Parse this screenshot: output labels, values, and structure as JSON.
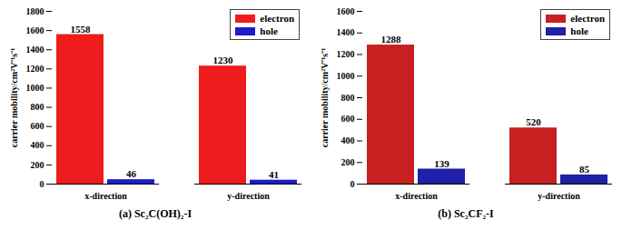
{
  "chart_data": [
    {
      "type": "bar",
      "title": "(a) Sc₂C(OH)₂-I",
      "y_label": "carrier mobility/cm²V⁻¹s⁻¹",
      "categories": [
        "x-direction",
        "y-direction"
      ],
      "series": [
        {
          "name": "electron",
          "color": "#ee1c1c",
          "values": [
            1558,
            1230
          ]
        },
        {
          "name": "hole",
          "color": "#1c1ccc",
          "values": [
            46,
            41
          ]
        }
      ],
      "ylim": [
        0,
        1800
      ],
      "yticks": [
        0,
        200,
        400,
        600,
        800,
        1000,
        1200,
        1400,
        1600,
        1800
      ],
      "legend": "upper right",
      "data_labels": true
    },
    {
      "type": "bar",
      "title": "(b) Sc₂CF₂-I",
      "y_label": "carrier mobility/cm²V⁻¹s⁻¹",
      "categories": [
        "x-direction",
        "y-direction"
      ],
      "series": [
        {
          "name": "electron",
          "color": "#c82020",
          "values": [
            1288,
            520
          ]
        },
        {
          "name": "hole",
          "color": "#2020a8",
          "values": [
            139,
            85
          ]
        }
      ],
      "ylim": [
        0,
        1600
      ],
      "yticks": [
        0,
        200,
        400,
        600,
        800,
        1000,
        1200,
        1400,
        1600
      ],
      "legend": "upper right",
      "data_labels": true
    }
  ]
}
